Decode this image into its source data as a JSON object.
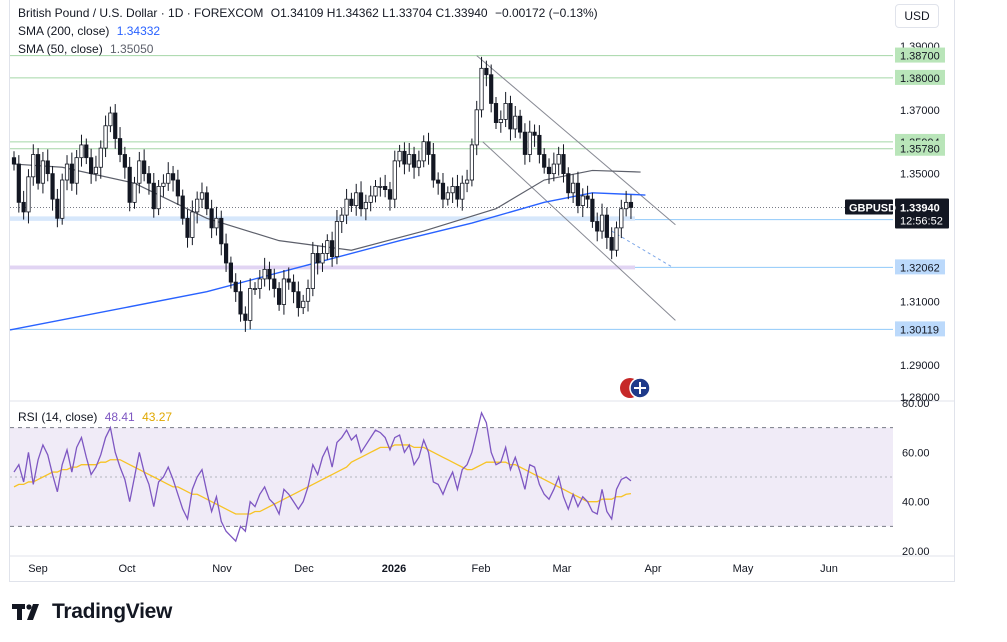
{
  "header": {
    "symbol_title": "British Pound / U.S. Dollar · 1D · FOREXCOM",
    "ohlc": "O1.34109  H1.34362  L1.33704  C1.33940",
    "change": "−0.00172 (−0.13%)",
    "sma200_label": "SMA (200, close)",
    "sma200_value": "1.34332",
    "sma50_label": "SMA (50, close)",
    "sma50_value": "1.35050",
    "currency": "USD"
  },
  "rsi_legend": {
    "label": "RSI (14, close)",
    "rsi_value": "48.41",
    "ma_value": "43.27"
  },
  "brand": {
    "name": "TradingView"
  },
  "colors": {
    "up": "#ffffff",
    "down": "#131722",
    "sma200": "#2962ff",
    "sma50": "#5d606b",
    "rsi": "#7e57c2",
    "rsi_ma": "#f7c325",
    "green_label": "#b9e5b9",
    "blue_label": "#bbd9fb",
    "price_tag": "#131722",
    "support_zone": "#e1d4f3",
    "channel": "#888a94"
  },
  "chart_data": [
    {
      "type": "candlestick",
      "symbol": "GBPUSD",
      "timeframe": "1D",
      "ylim": [
        1.28,
        1.39
      ],
      "price_ticks": [
        "1.39000",
        "1.37000",
        "1.35000",
        "1.31000",
        "1.29000",
        "1.28000"
      ],
      "x_labels": [
        "Sep",
        "Oct",
        "Nov",
        "Dec",
        "2026",
        "Feb",
        "Mar",
        "Apr",
        "May",
        "Jun"
      ],
      "current_price": {
        "symbol_tag": "GBPUSD",
        "value": "1.33940",
        "countdown": "12:56:52"
      },
      "level_labels": [
        {
          "value": "1.38700",
          "kind": "green"
        },
        {
          "value": "1.38000",
          "kind": "green"
        },
        {
          "value": "1.35994",
          "kind": "green"
        },
        {
          "value": "1.35780",
          "kind": "green"
        },
        {
          "value": "1.33557",
          "kind": "blue"
        },
        {
          "value": "1.32062",
          "kind": "blue"
        },
        {
          "value": "1.30119",
          "kind": "blue"
        }
      ],
      "closes": [
        1.353,
        1.341,
        1.338,
        1.349,
        1.356,
        1.347,
        1.354,
        1.35,
        1.342,
        1.336,
        1.348,
        1.353,
        1.347,
        1.355,
        1.359,
        1.355,
        1.35,
        1.352,
        1.358,
        1.365,
        1.369,
        1.361,
        1.356,
        1.352,
        1.341,
        1.347,
        1.354,
        1.35,
        1.347,
        1.339,
        1.346,
        1.347,
        1.35,
        1.348,
        1.343,
        1.336,
        1.33,
        1.338,
        1.342,
        1.344,
        1.339,
        1.333,
        1.336,
        1.328,
        1.322,
        1.316,
        1.313,
        1.306,
        1.304,
        1.314,
        1.314,
        1.317,
        1.32,
        1.317,
        1.314,
        1.309,
        1.317,
        1.316,
        1.313,
        1.308,
        1.31,
        1.314,
        1.325,
        1.322,
        1.325,
        1.329,
        1.324,
        1.335,
        1.337,
        1.342,
        1.34,
        1.344,
        1.339,
        1.341,
        1.343,
        1.346,
        1.346,
        1.345,
        1.342,
        1.354,
        1.357,
        1.353,
        1.356,
        1.352,
        1.354,
        1.36,
        1.356,
        1.348,
        1.347,
        1.342,
        1.344,
        1.346,
        1.342,
        1.347,
        1.348,
        1.359,
        1.37,
        1.383,
        1.381,
        1.372,
        1.366,
        1.367,
        1.372,
        1.364,
        1.368,
        1.363,
        1.356,
        1.363,
        1.362,
        1.356,
        1.352,
        1.35,
        1.353,
        1.356,
        1.35,
        1.344,
        1.347,
        1.34,
        1.343,
        1.342,
        1.335,
        1.332,
        1.337,
        1.33,
        1.326,
        1.333,
        1.339,
        1.341,
        1.3394
      ],
      "sma200_points": [
        [
          0,
          1.301
        ],
        [
          28,
          1.308
        ],
        [
          56,
          1.315
        ],
        [
          84,
          1.322
        ],
        [
          112,
          1.329
        ],
        [
          140,
          1.336
        ],
        [
          168,
          1.343
        ],
        [
          196,
          1.3434
        ]
      ],
      "sma50_points": [
        [
          0,
          1.353
        ],
        [
          10,
          1.352
        ],
        [
          25,
          1.347
        ],
        [
          40,
          1.336
        ],
        [
          55,
          1.329
        ],
        [
          70,
          1.326
        ],
        [
          85,
          1.332
        ],
        [
          100,
          1.339
        ],
        [
          110,
          1.348
        ],
        [
          120,
          1.351
        ],
        [
          130,
          1.3505
        ]
      ],
      "channel": {
        "upper": [
          [
            96,
            1.387
          ],
          [
            131,
            1.339
          ]
        ],
        "lower": [
          [
            96,
            1.36
          ],
          [
            131,
            1.304
          ]
        ]
      }
    },
    {
      "type": "line",
      "title": "RSI (14, close)",
      "ylim": [
        20,
        80
      ],
      "y_ticks": [
        "80.00",
        "60.00",
        "40.00",
        "20.00"
      ],
      "band": [
        30,
        70
      ],
      "midline": 50,
      "series": [
        {
          "name": "RSI",
          "values": [
            52,
            55,
            48,
            60,
            47,
            57,
            63,
            59,
            51,
            44,
            55,
            61,
            52,
            62,
            66,
            58,
            51,
            54,
            59,
            66,
            70,
            60,
            54,
            49,
            40,
            50,
            60,
            52,
            47,
            38,
            48,
            50,
            54,
            49,
            43,
            37,
            33,
            45,
            50,
            53,
            44,
            36,
            42,
            32,
            28,
            26,
            24,
            30,
            28,
            40,
            38,
            43,
            46,
            41,
            39,
            35,
            45,
            43,
            40,
            37,
            40,
            46,
            55,
            51,
            58,
            62,
            54,
            64,
            66,
            69,
            65,
            67,
            60,
            63,
            66,
            69,
            68,
            66,
            61,
            66,
            67,
            60,
            63,
            55,
            58,
            65,
            60,
            48,
            47,
            43,
            48,
            52,
            45,
            53,
            55,
            60,
            68,
            76,
            72,
            60,
            55,
            56,
            62,
            53,
            58,
            52,
            45,
            55,
            54,
            47,
            43,
            41,
            45,
            50,
            42,
            37,
            43,
            38,
            42,
            40,
            36,
            35,
            45,
            36,
            33,
            45,
            49,
            50,
            48.41
          ]
        },
        {
          "name": "RSI MA",
          "values": [
            46,
            47,
            47,
            48,
            48,
            49,
            50,
            51,
            52,
            52,
            53,
            53,
            54,
            54,
            55,
            55,
            55,
            55,
            56,
            56,
            57,
            57,
            57,
            56,
            55,
            54,
            53,
            52,
            51,
            50,
            49,
            48,
            47,
            46,
            46,
            45,
            44,
            43,
            43,
            42,
            41,
            40,
            39,
            38,
            37,
            36,
            35,
            35,
            35,
            35,
            36,
            36,
            37,
            38,
            39,
            40,
            41,
            42,
            43,
            44,
            45,
            46,
            47,
            48,
            49,
            50,
            51,
            52,
            53,
            54,
            56,
            57,
            58,
            59,
            60,
            61,
            62,
            62,
            62,
            63,
            63,
            63,
            63,
            62,
            62,
            62,
            61,
            60,
            59,
            58,
            57,
            56,
            55,
            54,
            53,
            53,
            54,
            55,
            56,
            56,
            56,
            56,
            56,
            55,
            55,
            54,
            53,
            52,
            51,
            50,
            49,
            48,
            47,
            46,
            45,
            44,
            43,
            42,
            41,
            40,
            40,
            40,
            41,
            41,
            41,
            42,
            42,
            43,
            43.27
          ]
        }
      ]
    }
  ]
}
